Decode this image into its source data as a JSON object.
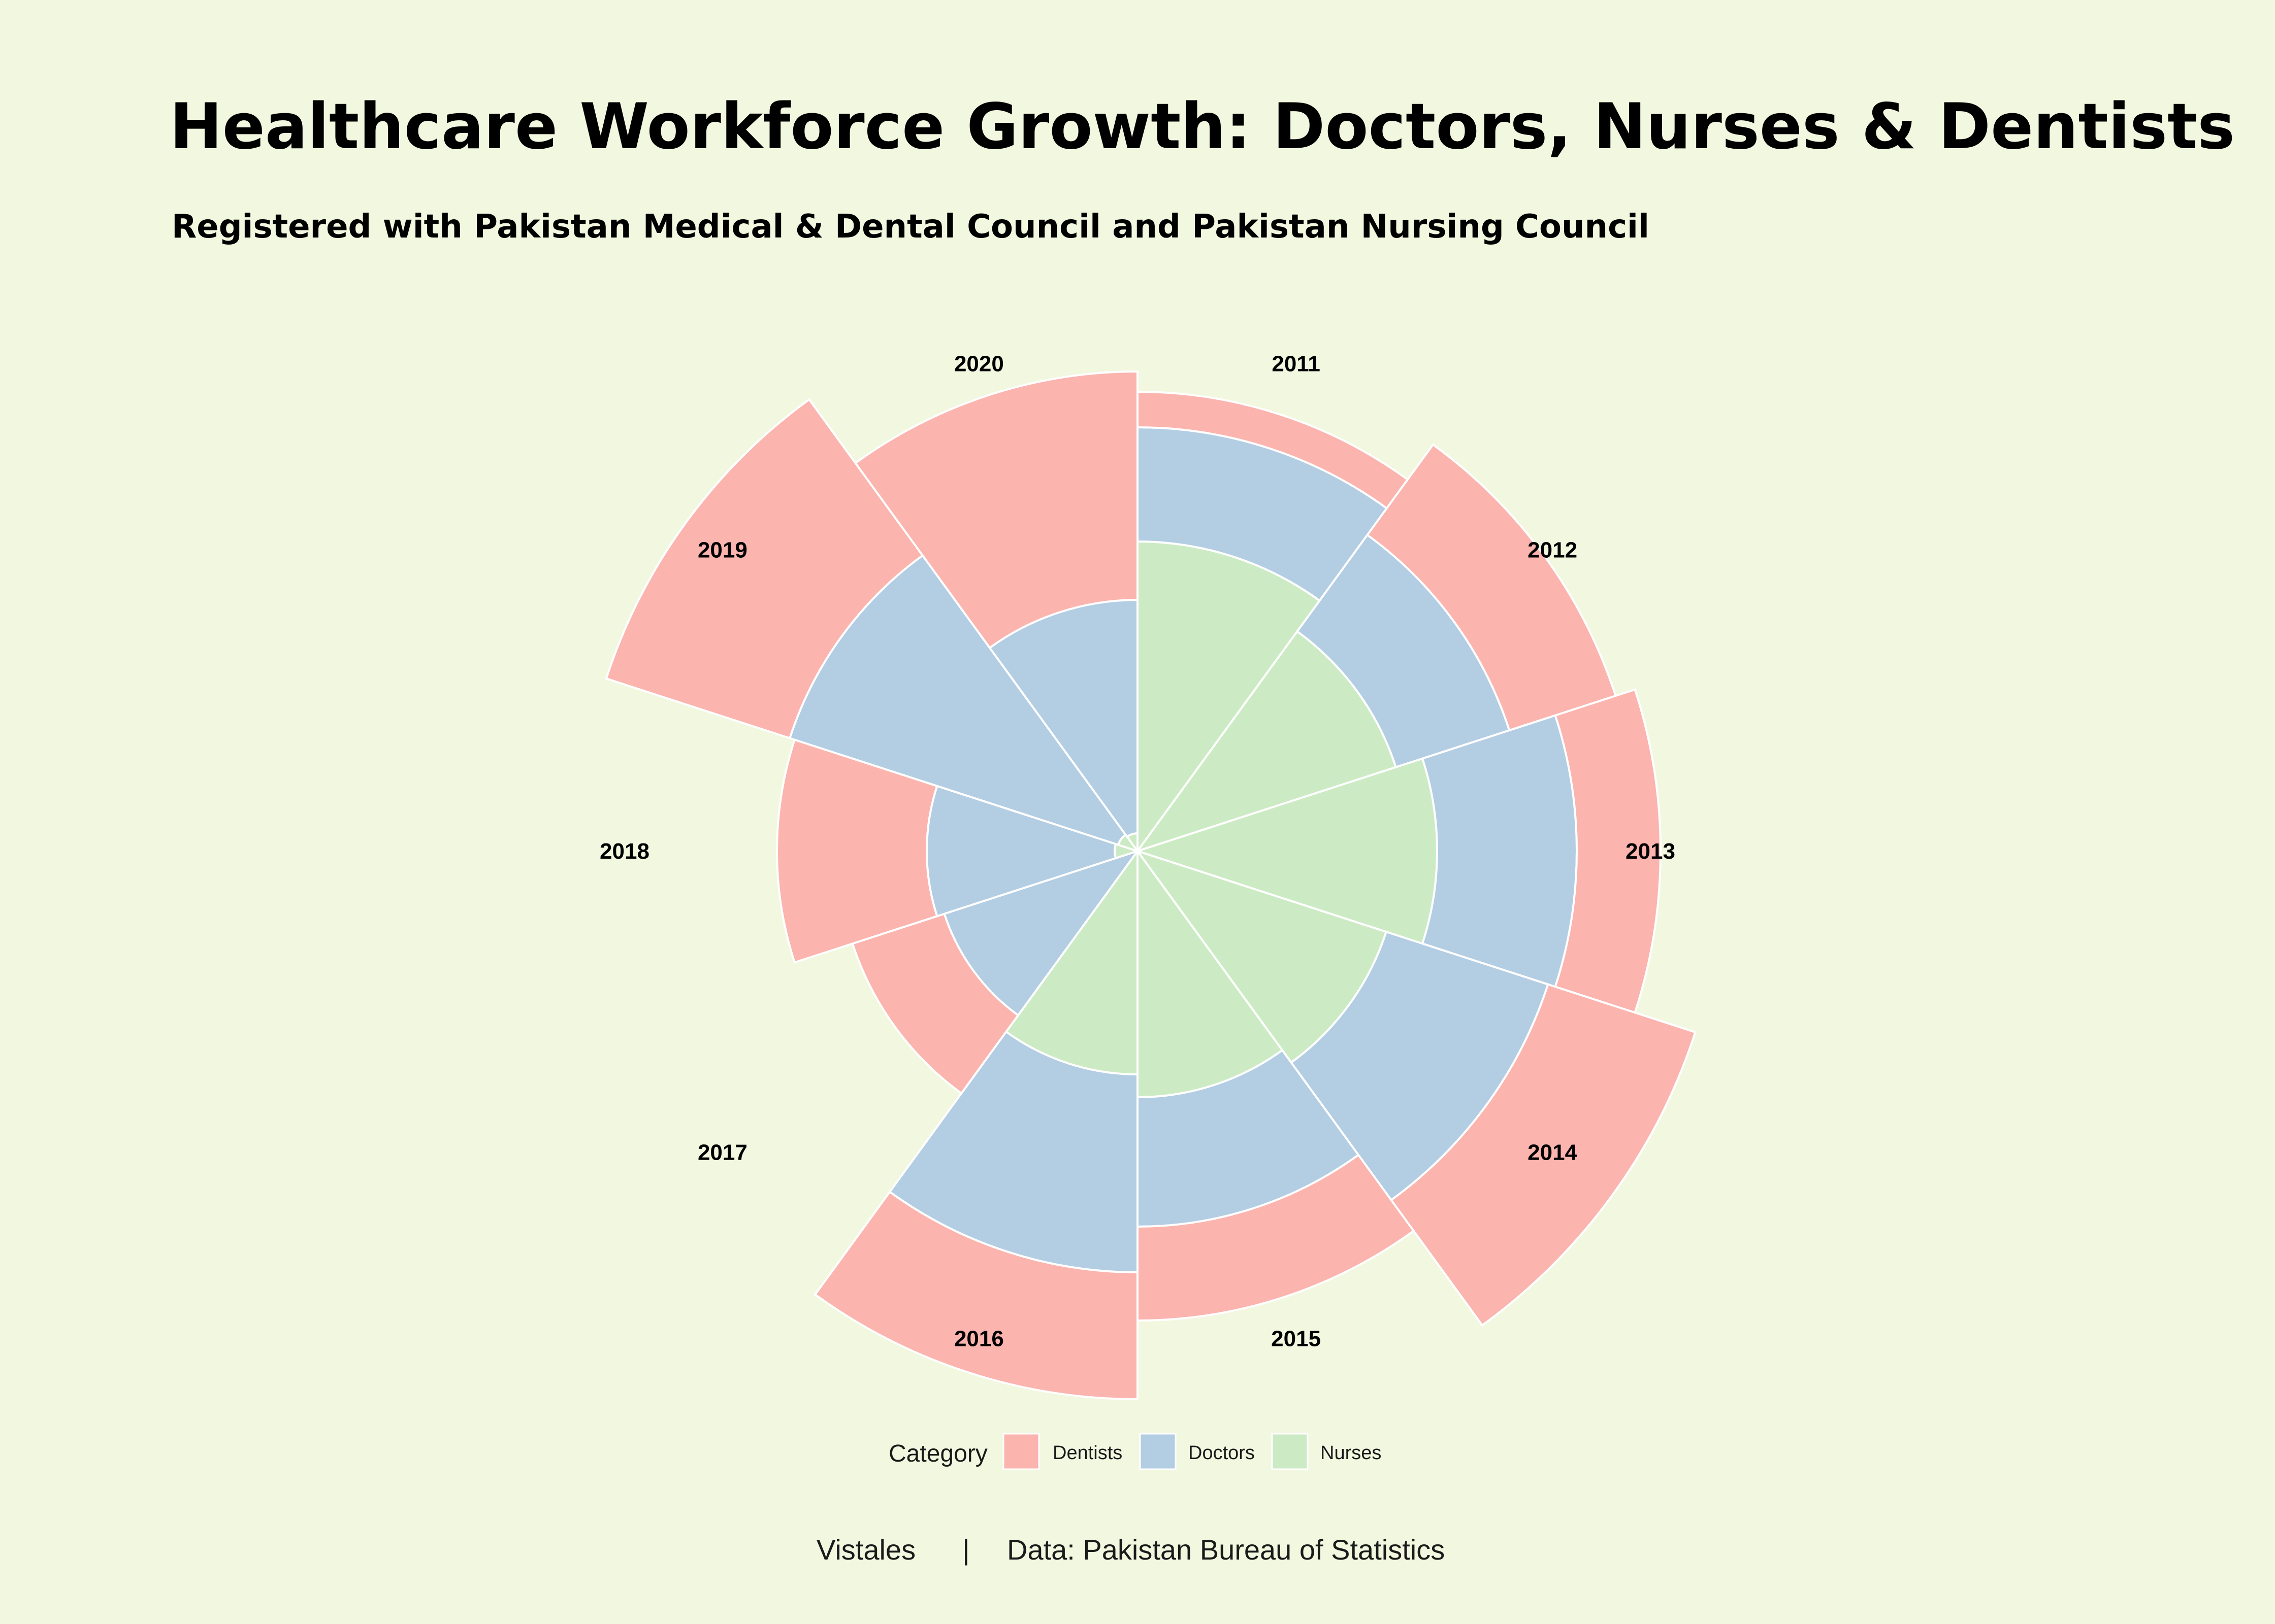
{
  "header": {
    "title": "Healthcare Workforce Growth: Doctors, Nurses & Dentists",
    "subtitle": "Registered with Pakistan Medical & Dental Council and Pakistan Nursing Council"
  },
  "legend": {
    "title": "Category",
    "items": [
      {
        "label": "Dentists",
        "color": "#fbb4ae"
      },
      {
        "label": "Doctors",
        "color": "#b3cde3"
      },
      {
        "label": "Nurses",
        "color": "#ccebc5"
      }
    ]
  },
  "caption": {
    "source_brand": "Vistales",
    "separator": "|",
    "source_text": "Data: Pakistan Bureau of Statistics"
  },
  "chart_data": {
    "type": "bar",
    "coord": "polar",
    "stacked": true,
    "categories": [
      "2011",
      "2012",
      "2013",
      "2014",
      "2015",
      "2016",
      "2017",
      "2018",
      "2019",
      "2020"
    ],
    "stack_order_inner_to_outer": [
      "Nurses",
      "Doctors",
      "Dentists"
    ],
    "series": [
      {
        "name": "Nurses",
        "values": [
          6.1,
          5.35,
          5.9,
          5.15,
          4.85,
          4.4,
          0.0,
          0.45,
          0.4,
          0.35
        ]
      },
      {
        "name": "Doctors",
        "values": [
          2.25,
          2.35,
          2.75,
          3.35,
          2.55,
          3.9,
          4.0,
          3.7,
          6.8,
          4.6
        ]
      },
      {
        "name": "Dentists",
        "values": [
          0.7,
          2.2,
          1.65,
          3.05,
          1.85,
          2.5,
          1.9,
          2.95,
          3.8,
          4.5
        ]
      }
    ],
    "xlabel": "",
    "ylabel": "",
    "grid": false,
    "legend_position": "bottom"
  }
}
